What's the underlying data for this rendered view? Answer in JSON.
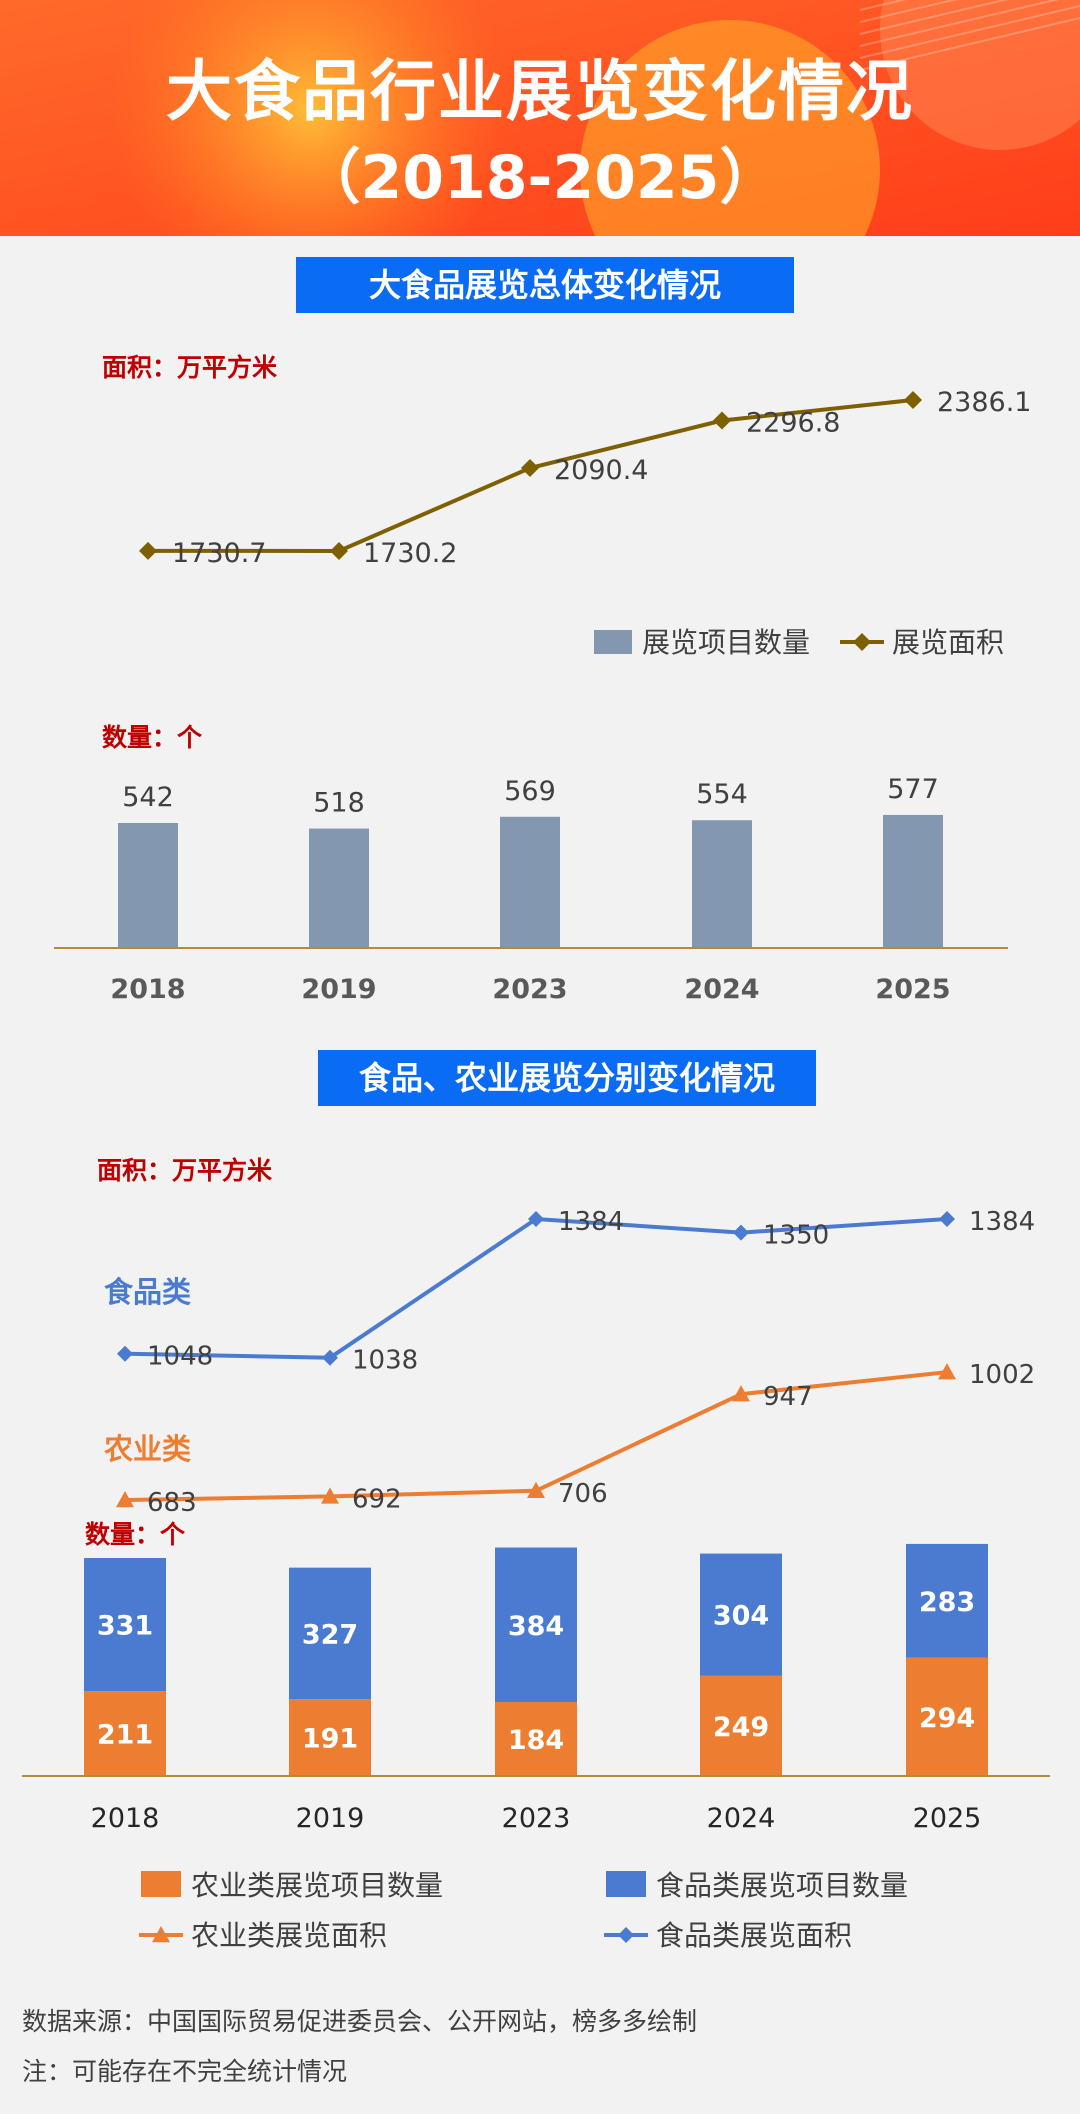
{
  "header": {
    "title": "大食品行业展览变化情况",
    "subtitle": "（2018-2025）"
  },
  "section1": {
    "title": "大食品展览总体变化情况"
  },
  "section2": {
    "title": "食品、农业展览分别变化情况"
  },
  "colors": {
    "banner_orange": "#ff5a1f",
    "banner_yellow": "#ffa51e",
    "section_blue": "#0a6cf5",
    "unit_red": "#c00000",
    "bar_gray": "#8497b0",
    "line_olive": "#7f6000",
    "food_blue": "#4a7bd0",
    "agri_orange": "#ed7d31"
  },
  "chart_data": [
    {
      "type": "line+bar",
      "categories": [
        "2018",
        "2019",
        "2023",
        "2024",
        "2025"
      ],
      "area_unit": "面积：万平方米",
      "count_unit": "数量：个",
      "legend": [
        "展览项目数量",
        "展览面积"
      ],
      "series": [
        {
          "name": "展览面积",
          "kind": "line",
          "values": [
            1730.7,
            1730.2,
            2090.4,
            2296.8,
            2386.1
          ],
          "labels": [
            "1730.7",
            "1730.2",
            "2090.4",
            "2296.8",
            "2386.1"
          ]
        },
        {
          "name": "展览项目数量",
          "kind": "bar",
          "values": [
            542,
            518,
            569,
            554,
            577
          ],
          "labels": [
            "542",
            "518",
            "569",
            "554",
            "577"
          ]
        }
      ]
    },
    {
      "type": "line+stacked-bar",
      "categories": [
        "2018",
        "2019",
        "2023",
        "2024",
        "2025"
      ],
      "area_unit": "面积：万平方米",
      "count_unit": "数量：个",
      "line_group_labels": {
        "food": "食品类",
        "agri": "农业类"
      },
      "legend": [
        "农业类展览项目数量",
        "食品类展览项目数量",
        "农业类展览面积",
        "食品类展览面积"
      ],
      "series": [
        {
          "name": "食品类展览面积",
          "kind": "line",
          "values": [
            1048,
            1038,
            1384,
            1350,
            1384
          ],
          "labels": [
            "1048",
            "1038",
            "1384",
            "1350",
            "1384"
          ]
        },
        {
          "name": "农业类展览面积",
          "kind": "line",
          "values": [
            683,
            692,
            706,
            947,
            1002
          ],
          "labels": [
            "683",
            "692",
            "706",
            "947",
            "1002"
          ]
        },
        {
          "name": "农业类展览项目数量",
          "kind": "bar",
          "values": [
            211,
            191,
            184,
            249,
            294
          ],
          "labels": [
            "211",
            "191",
            "184",
            "249",
            "294"
          ]
        },
        {
          "name": "食品类展览项目数量",
          "kind": "bar",
          "values": [
            331,
            327,
            384,
            304,
            283
          ],
          "labels": [
            "331",
            "327",
            "384",
            "304",
            "283"
          ]
        }
      ]
    }
  ],
  "footer": {
    "source": "数据来源：中国国际贸易促进委员会、公开网站，榜多多绘制",
    "note": "注：可能存在不完全统计情况"
  }
}
